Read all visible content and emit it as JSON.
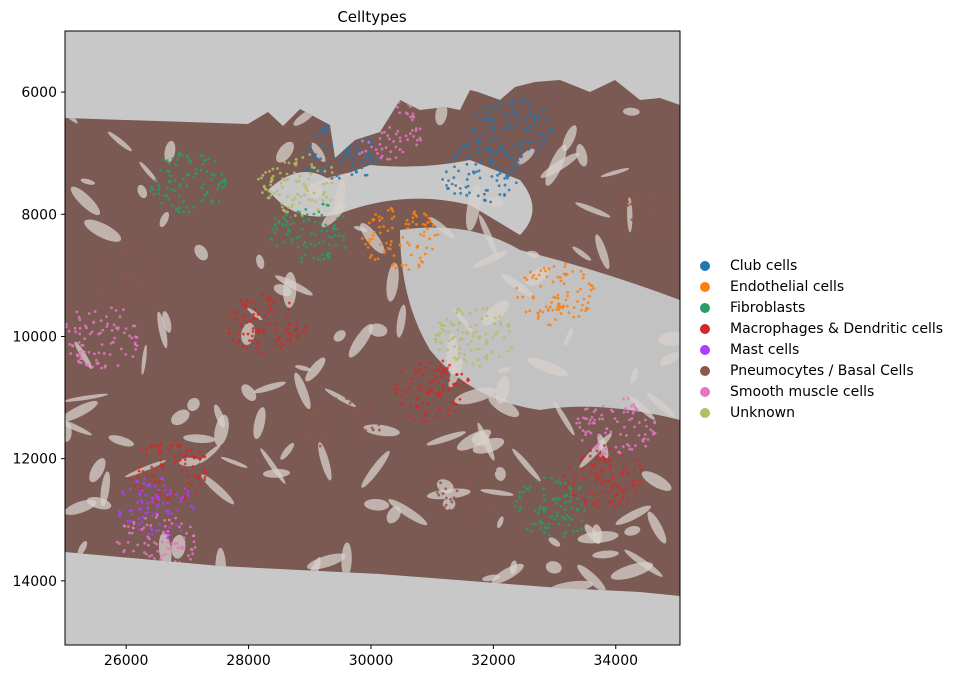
{
  "chart_data": {
    "type": "scatter",
    "title": "Celltypes",
    "xlabel": "",
    "ylabel": "",
    "xlim": [
      25000,
      35050
    ],
    "ylim": [
      15050,
      5000
    ],
    "y_inverted": true,
    "x_ticks": [
      26000,
      28000,
      30000,
      32000,
      34000
    ],
    "y_ticks": [
      6000,
      8000,
      10000,
      12000,
      14000
    ],
    "grid": false,
    "legend_position": "right",
    "background_image": "grayscale tissue section",
    "series": [
      {
        "name": "Club cells",
        "color": "#1f77b4",
        "regions": [
          {
            "x": 29500,
            "y": 7000
          },
          {
            "x": 31800,
            "y": 7300
          },
          {
            "x": 32300,
            "y": 6600
          }
        ]
      },
      {
        "name": "Endothelial cells",
        "color": "#ff7f0e",
        "regions": [
          {
            "x": 33000,
            "y": 9300
          },
          {
            "x": 30500,
            "y": 8400
          }
        ]
      },
      {
        "name": "Fibroblasts",
        "color": "#279e68",
        "regions": [
          {
            "x": 27000,
            "y": 7500
          },
          {
            "x": 33000,
            "y": 12800
          },
          {
            "x": 29000,
            "y": 8300
          }
        ]
      },
      {
        "name": "Macrophages & Dendritic cells",
        "color": "#d62728",
        "regions": [
          {
            "x": 26700,
            "y": 12200
          },
          {
            "x": 28300,
            "y": 9800
          },
          {
            "x": 31000,
            "y": 10900
          },
          {
            "x": 33800,
            "y": 12300
          }
        ]
      },
      {
        "name": "Mast cells",
        "color": "#aa40fc",
        "regions": [
          {
            "x": 26500,
            "y": 12800
          }
        ]
      },
      {
        "name": "Pneumocytes / Basal Cells",
        "color": "#8c564b",
        "regions": [
          {
            "x": 26000,
            "y": 9000
          },
          {
            "x": 29500,
            "y": 11500
          },
          {
            "x": 31500,
            "y": 12500
          },
          {
            "x": 34500,
            "y": 8000
          }
        ]
      },
      {
        "name": "Smooth muscle cells",
        "color": "#e377c2",
        "regions": [
          {
            "x": 25600,
            "y": 10000
          },
          {
            "x": 30200,
            "y": 6600
          },
          {
            "x": 34000,
            "y": 11500
          },
          {
            "x": 26500,
            "y": 13400
          }
        ]
      },
      {
        "name": "Unknown",
        "color": "#b5bd61",
        "regions": [
          {
            "x": 31700,
            "y": 10000
          },
          {
            "x": 28800,
            "y": 7500
          }
        ]
      }
    ]
  }
}
